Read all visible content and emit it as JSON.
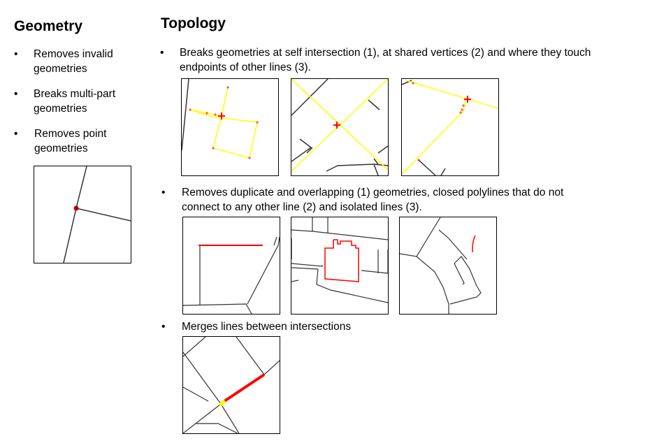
{
  "geometry": {
    "title": "Geometry",
    "bullets": [
      {
        "symbol": "•",
        "line1": "Removes invalid",
        "line2": "geometries"
      },
      {
        "symbol": "•",
        "line1": "Breaks multi-part",
        "line2": "geometries"
      },
      {
        "symbol": "•",
        "line1": "Removes point",
        "line2": "geometries"
      }
    ]
  },
  "topology": {
    "title": "Topology",
    "bullets": [
      {
        "symbol": "•",
        "line1": "Breaks geometries at self intersection (1), at shared vertices (2) and where they touch",
        "line2": "endpoints of other lines (3)."
      },
      {
        "symbol": "•",
        "line1": "Removes duplicate and  overlapping (1) geometries, closed polylines that do not",
        "line2": "connect to any other line (2) and isolated lines (3)."
      },
      {
        "symbol": "•",
        "line1": "Merges lines between intersections",
        "line2": ""
      }
    ]
  },
  "colors": {
    "line": "#333333",
    "highlight_red": "#ff0000",
    "highlight_yellow": "#ffff00",
    "vertex_red": "#ff3030"
  }
}
